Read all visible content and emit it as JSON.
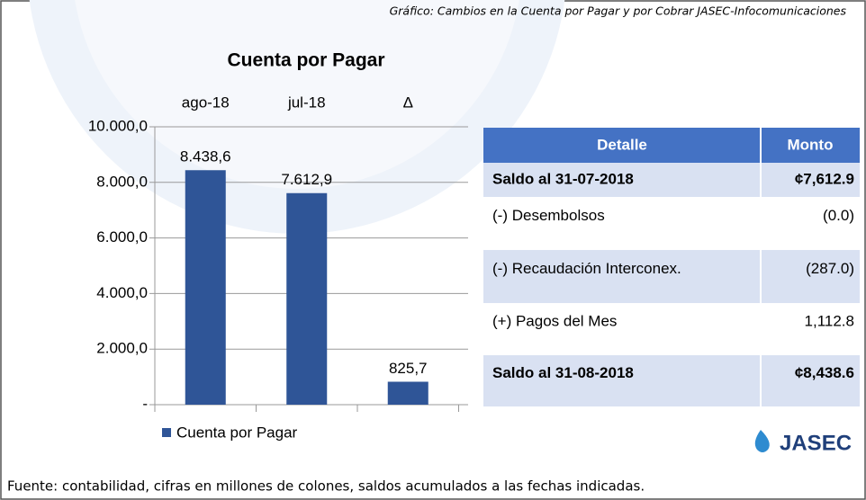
{
  "header": {
    "title": "Gráfico: Cambios en la Cuenta por Pagar y por Cobrar JASEC-Infocomunicaciones"
  },
  "chart_data": {
    "type": "bar",
    "title": "Cuenta por Pagar",
    "categories": [
      "ago-18",
      "jul-18",
      "Δ"
    ],
    "series": [
      {
        "name": "Cuenta por Pagar",
        "color": "#2f5597",
        "values": [
          8438.6,
          7612.9,
          825.7
        ],
        "value_labels": [
          "8.438,6",
          "7.612,9",
          "825,7"
        ]
      }
    ],
    "ylim": [
      0,
      10000
    ],
    "yticks": [
      {
        "value": 0,
        "label": "-"
      },
      {
        "value": 2000,
        "label": "2.000,0"
      },
      {
        "value": 4000,
        "label": "4.000,0"
      },
      {
        "value": 6000,
        "label": "6.000,0"
      },
      {
        "value": 8000,
        "label": "8.000,0"
      },
      {
        "value": 10000,
        "label": "10.000,0"
      }
    ],
    "grid": true,
    "legend": "bottom"
  },
  "table": {
    "columns": [
      "Detalle",
      "Monto"
    ],
    "rows": [
      [
        "Saldo al 31-07-2018",
        "¢7,612.9"
      ],
      [
        "(-) Desembolsos",
        "(0.0)"
      ],
      [
        "(-) Recaudación Interconex.",
        "(287.0)"
      ],
      [
        "(+) Pagos del Mes",
        "1,112.8"
      ],
      [
        "Saldo al 31-08-2018",
        "¢8,438.6"
      ]
    ]
  },
  "logo": "JASEC",
  "footer": "Fuente: contabilidad, cifras en millones de colones, saldos acumulados a las fechas indicadas."
}
